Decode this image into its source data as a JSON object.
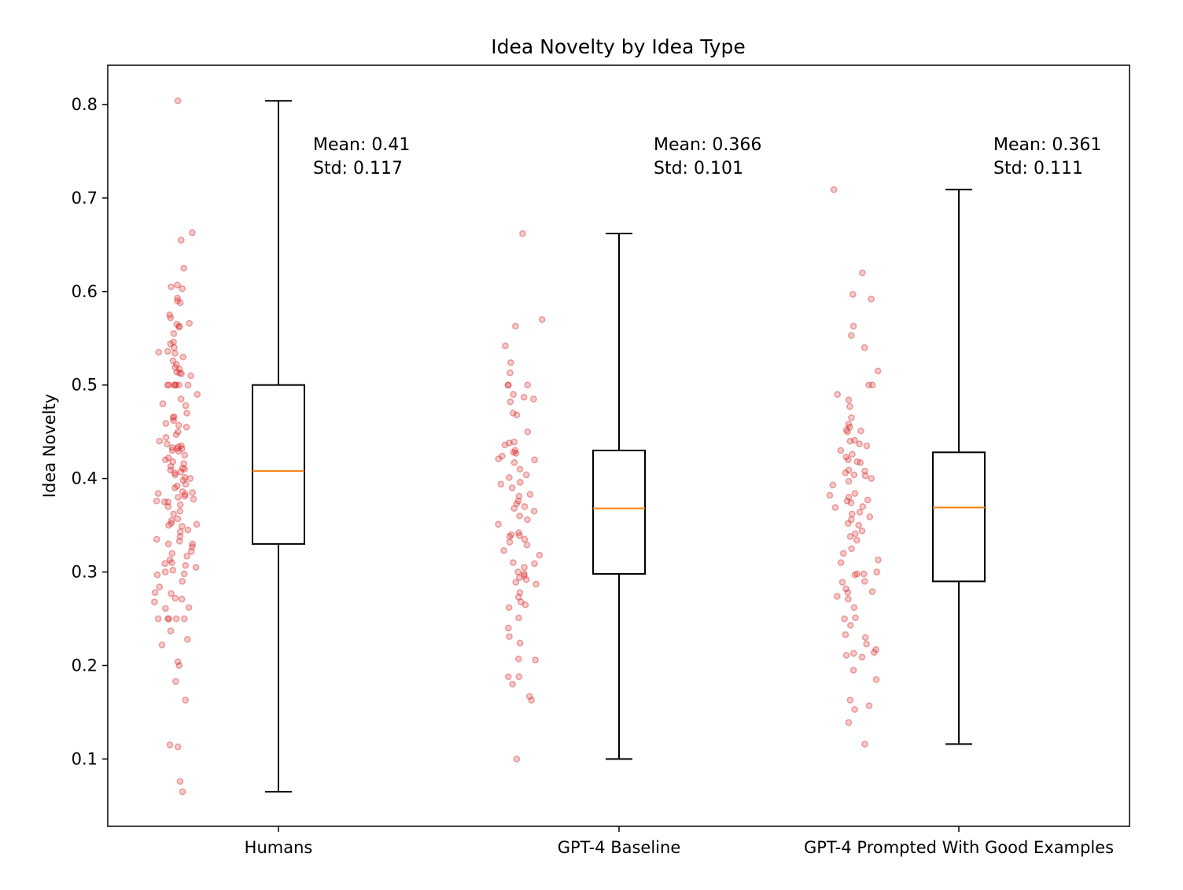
{
  "chart_data": {
    "type": "box",
    "title": "Idea Novelty by Idea Type",
    "xlabel": "",
    "ylabel": "Idea Novelty",
    "ylim": [
      0.028,
      0.842
    ],
    "yticks": [
      0.1,
      0.2,
      0.3,
      0.4,
      0.5,
      0.6,
      0.7,
      0.8
    ],
    "ytick_labels": [
      "0.1",
      "0.2",
      "0.3",
      "0.4",
      "0.5",
      "0.6",
      "0.7",
      "0.8"
    ],
    "grid": false,
    "colors": {
      "points": "#d62728",
      "box": "#000000",
      "median": "#ff7f0e"
    },
    "groups": [
      {
        "label": "Humans",
        "whisker_low": 0.065,
        "q1": 0.33,
        "median": 0.408,
        "q3": 0.5,
        "whisker_high": 0.804,
        "mean_text": "Mean: 0.41",
        "std_text": "Std: 0.117",
        "points": [
          0.804,
          0.663,
          0.655,
          0.625,
          0.607,
          0.605,
          0.603,
          0.593,
          0.59,
          0.588,
          0.575,
          0.572,
          0.566,
          0.565,
          0.563,
          0.562,
          0.555,
          0.546,
          0.544,
          0.54,
          0.536,
          0.535,
          0.534,
          0.53,
          0.526,
          0.522,
          0.519,
          0.517,
          0.514,
          0.513,
          0.512,
          0.51,
          0.5,
          0.5,
          0.5,
          0.5,
          0.5,
          0.5,
          0.5,
          0.49,
          0.485,
          0.48,
          0.478,
          0.47,
          0.466,
          0.465,
          0.462,
          0.459,
          0.457,
          0.455,
          0.45,
          0.447,
          0.444,
          0.44,
          0.437,
          0.435,
          0.434,
          0.433,
          0.432,
          0.432,
          0.43,
          0.429,
          0.425,
          0.422,
          0.42,
          0.418,
          0.416,
          0.413,
          0.411,
          0.41,
          0.409,
          0.407,
          0.406,
          0.404,
          0.401,
          0.4,
          0.398,
          0.394,
          0.392,
          0.39,
          0.386,
          0.385,
          0.384,
          0.383,
          0.381,
          0.38,
          0.378,
          0.376,
          0.375,
          0.375,
          0.372,
          0.37,
          0.365,
          0.362,
          0.357,
          0.355,
          0.352,
          0.351,
          0.35,
          0.349,
          0.345,
          0.343,
          0.338,
          0.335,
          0.333,
          0.33,
          0.33,
          0.327,
          0.322,
          0.32,
          0.317,
          0.313,
          0.31,
          0.309,
          0.307,
          0.305,
          0.302,
          0.3,
          0.298,
          0.297,
          0.29,
          0.284,
          0.278,
          0.277,
          0.272,
          0.271,
          0.268,
          0.262,
          0.261,
          0.25,
          0.25,
          0.25,
          0.25,
          0.25,
          0.237,
          0.228,
          0.222,
          0.204,
          0.2,
          0.183,
          0.163,
          0.115,
          0.113,
          0.076,
          0.065
        ]
      },
      {
        "label": "GPT-4 Baseline",
        "whisker_low": 0.1,
        "q1": 0.298,
        "median": 0.368,
        "q3": 0.43,
        "whisker_high": 0.662,
        "mean_text": "Mean: 0.366",
        "std_text": "Std: 0.101",
        "points": [
          0.662,
          0.57,
          0.563,
          0.542,
          0.524,
          0.513,
          0.5,
          0.5,
          0.5,
          0.49,
          0.487,
          0.485,
          0.482,
          0.47,
          0.468,
          0.45,
          0.439,
          0.438,
          0.436,
          0.43,
          0.428,
          0.427,
          0.424,
          0.421,
          0.42,
          0.417,
          0.41,
          0.404,
          0.401,
          0.396,
          0.394,
          0.39,
          0.383,
          0.381,
          0.376,
          0.373,
          0.37,
          0.368,
          0.365,
          0.36,
          0.356,
          0.351,
          0.342,
          0.34,
          0.339,
          0.338,
          0.335,
          0.332,
          0.329,
          0.323,
          0.318,
          0.31,
          0.309,
          0.305,
          0.3,
          0.298,
          0.296,
          0.294,
          0.292,
          0.289,
          0.287,
          0.278,
          0.273,
          0.268,
          0.265,
          0.262,
          0.251,
          0.24,
          0.231,
          0.224,
          0.207,
          0.206,
          0.188,
          0.188,
          0.18,
          0.167,
          0.163,
          0.1
        ]
      },
      {
        "label": "GPT-4 Prompted With Good Examples",
        "whisker_low": 0.116,
        "q1": 0.29,
        "median": 0.369,
        "q3": 0.428,
        "whisker_high": 0.709,
        "mean_text": "Mean: 0.361",
        "std_text": "Std: 0.111",
        "points": [
          0.709,
          0.62,
          0.597,
          0.592,
          0.563,
          0.553,
          0.54,
          0.515,
          0.5,
          0.5,
          0.49,
          0.484,
          0.477,
          0.465,
          0.458,
          0.455,
          0.452,
          0.451,
          0.45,
          0.441,
          0.44,
          0.437,
          0.435,
          0.43,
          0.426,
          0.423,
          0.42,
          0.418,
          0.417,
          0.409,
          0.408,
          0.406,
          0.404,
          0.403,
          0.4,
          0.397,
          0.393,
          0.384,
          0.382,
          0.38,
          0.377,
          0.376,
          0.374,
          0.37,
          0.369,
          0.364,
          0.362,
          0.359,
          0.356,
          0.352,
          0.35,
          0.344,
          0.341,
          0.338,
          0.334,
          0.325,
          0.32,
          0.313,
          0.31,
          0.3,
          0.298,
          0.298,
          0.297,
          0.29,
          0.289,
          0.282,
          0.279,
          0.278,
          0.274,
          0.271,
          0.262,
          0.251,
          0.25,
          0.243,
          0.233,
          0.23,
          0.223,
          0.217,
          0.214,
          0.213,
          0.211,
          0.209,
          0.195,
          0.185,
          0.163,
          0.157,
          0.153,
          0.139,
          0.116
        ]
      }
    ]
  }
}
